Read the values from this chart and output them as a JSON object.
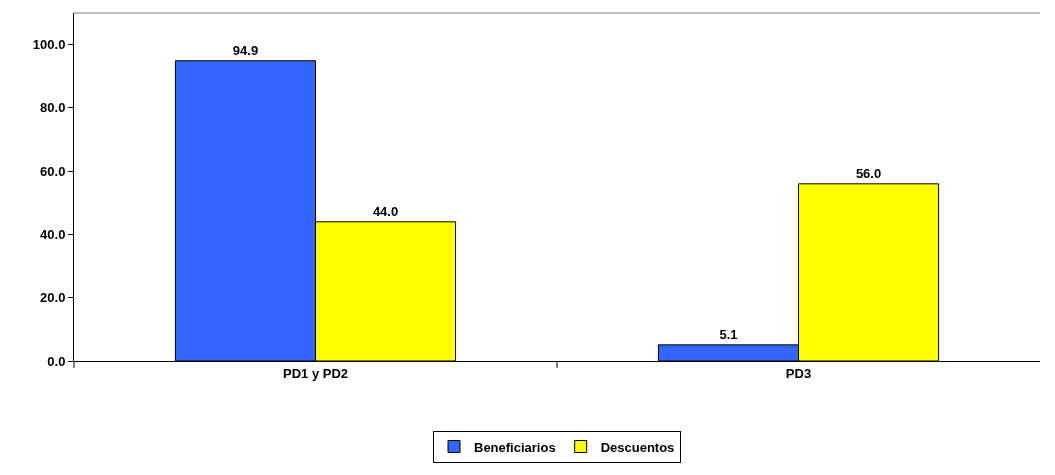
{
  "chart_data": {
    "type": "bar",
    "categories": [
      "PD1 y PD2",
      "PD3"
    ],
    "series": [
      {
        "name": "Beneficiarios",
        "color": "#3366ff",
        "values": [
          94.9,
          5.1
        ]
      },
      {
        "name": "Descuentos",
        "color": "#ffff00",
        "values": [
          44.0,
          56.0
        ]
      }
    ],
    "value_labels": [
      [
        "94.9",
        "5.1"
      ],
      [
        "44.0",
        "56.0"
      ]
    ],
    "ylim": [
      0,
      110
    ],
    "yticks": [
      {
        "value": 0,
        "label": "0.0"
      },
      {
        "value": 20,
        "label": "20.0"
      },
      {
        "value": 40,
        "label": "40.0"
      },
      {
        "value": 60,
        "label": "60.0"
      },
      {
        "value": 80,
        "label": "80.0"
      },
      {
        "value": 100,
        "label": "100.0"
      }
    ],
    "grid": false,
    "legend": "bottom"
  }
}
